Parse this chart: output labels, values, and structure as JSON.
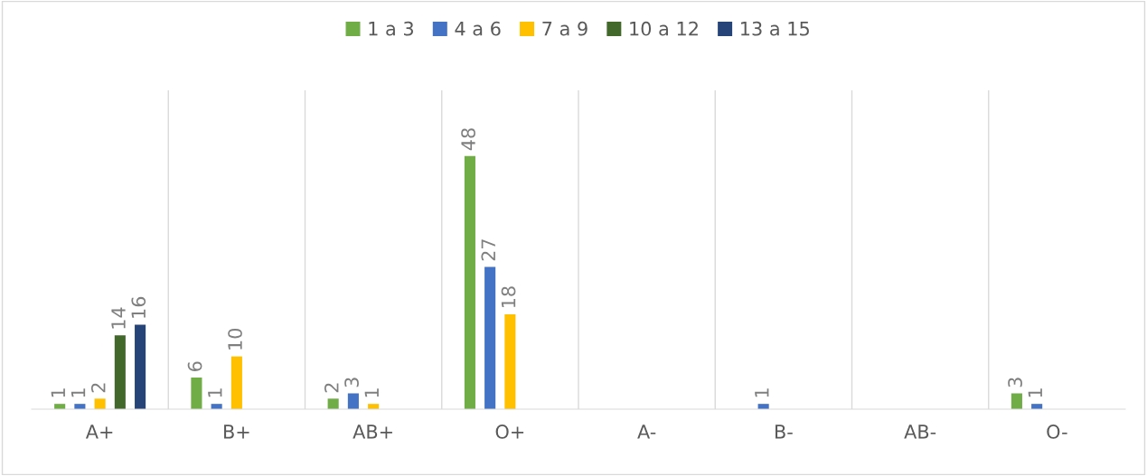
{
  "chart_data": {
    "type": "bar",
    "categories": [
      "A+",
      "B+",
      "AB+",
      "O+",
      "A-",
      "B-",
      "AB-",
      "O-"
    ],
    "series": [
      {
        "name": "1 a 3",
        "color": "#70ad47",
        "values": [
          1,
          6,
          2,
          48,
          null,
          null,
          null,
          3
        ]
      },
      {
        "name": "4 a 6",
        "color": "#4472c4",
        "values": [
          1,
          1,
          3,
          27,
          null,
          1,
          null,
          1
        ]
      },
      {
        "name": "7 a 9",
        "color": "#ffc000",
        "values": [
          2,
          10,
          1,
          18,
          null,
          null,
          null,
          null
        ]
      },
      {
        "name": "10 a 12",
        "color": "#43682b",
        "values": [
          14,
          null,
          null,
          null,
          null,
          null,
          null,
          null
        ]
      },
      {
        "name": "13 a 15",
        "color": "#264478",
        "values": [
          16,
          null,
          null,
          null,
          null,
          null,
          null,
          null
        ]
      }
    ],
    "data_labels": true,
    "grid": "x",
    "legend": "top"
  }
}
